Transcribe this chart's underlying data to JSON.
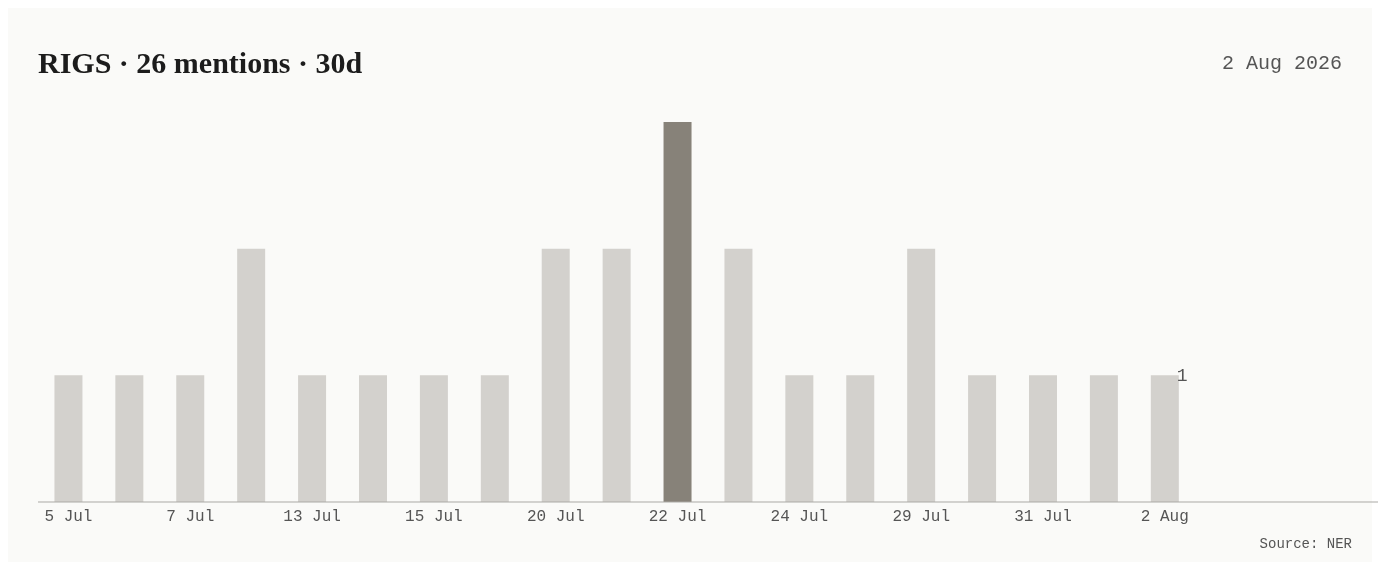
{
  "chart_data": {
    "type": "bar",
    "title": "RIGS · 26 mentions · 30d",
    "subtitle": "2 Aug 2026",
    "categories": [
      "5 Jul",
      null,
      "7 Jul",
      null,
      "13 Jul",
      null,
      "15 Jul",
      null,
      "20 Jul",
      null,
      "22 Jul",
      null,
      "24 Jul",
      null,
      "29 Jul",
      null,
      "31 Jul",
      null,
      "2 Aug",
      null,
      null,
      null
    ],
    "values": [
      1,
      1,
      1,
      2,
      1,
      1,
      1,
      1,
      2,
      2,
      3,
      2,
      1,
      1,
      2,
      1,
      1,
      1,
      1,
      null,
      null,
      null
    ],
    "colors": [
      "#d3d1cd",
      "#d3d1cd",
      "#d3d1cd",
      "#d3d1cd",
      "#d3d1cd",
      "#d3d1cd",
      "#d3d1cd",
      "#d3d1cd",
      "#d3d1cd",
      "#d3d1cd",
      "#878279",
      "#d3d1cd",
      "#d3d1cd",
      "#d3d1cd",
      "#d3d1cd",
      "#d3d1cd",
      "#d3d1cd",
      "#d3d1cd",
      "#d3d1cd",
      "#d3d1cd",
      "#d3d1cd",
      "#d3d1cd"
    ],
    "value_labels": [
      null,
      null,
      null,
      null,
      null,
      null,
      null,
      null,
      null,
      null,
      null,
      null,
      null,
      null,
      null,
      null,
      null,
      null,
      "1",
      null,
      null,
      null
    ],
    "annotations": [
      "Source: NER"
    ],
    "grid": false,
    "legend": false
  }
}
